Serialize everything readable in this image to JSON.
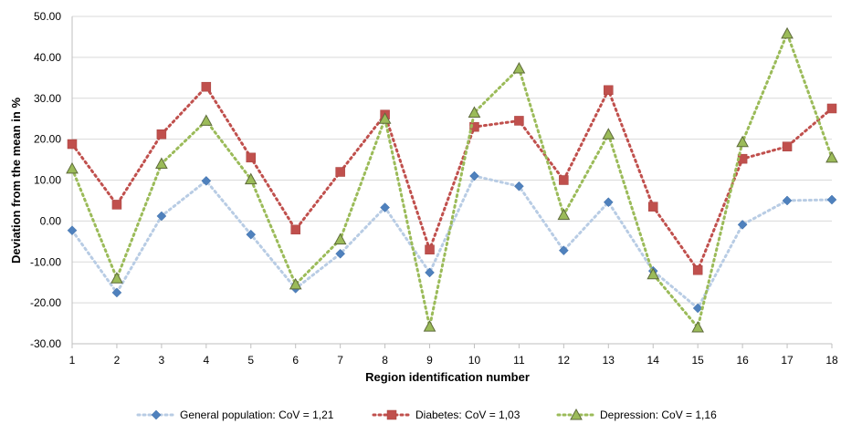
{
  "chart_data": {
    "type": "line",
    "xlabel": "Region identification number",
    "ylabel": "Deviation from the mean in %",
    "ylim": [
      -30,
      50
    ],
    "ytick_step": 10,
    "categories": [
      "1",
      "2",
      "3",
      "4",
      "5",
      "6",
      "7",
      "8",
      "9",
      "10",
      "11",
      "12",
      "13",
      "14",
      "15",
      "16",
      "17",
      "18"
    ],
    "grid": "horizontal",
    "legend_position": "bottom",
    "series": [
      {
        "name": "General population: CoV = 1,21",
        "color": "#4f81bd",
        "line_color": "#b8cce4",
        "marker": "diamond",
        "values": [
          -2.3,
          -17.5,
          1.2,
          9.8,
          -3.3,
          -16.5,
          -8.0,
          3.3,
          -12.6,
          11.0,
          8.5,
          -7.2,
          4.6,
          -12.2,
          -21.3,
          -0.9,
          5.0,
          5.2
        ]
      },
      {
        "name": "Diabetes: CoV = 1,03",
        "color": "#c0504d",
        "line_color": "#c0504d",
        "marker": "square",
        "values": [
          18.8,
          4.0,
          21.2,
          32.8,
          15.5,
          -2.1,
          12.0,
          26.0,
          -7.0,
          23.0,
          24.5,
          10.0,
          32.0,
          3.5,
          -12.0,
          15.2,
          18.2,
          27.5
        ]
      },
      {
        "name": "Depression: CoV = 1,16",
        "color": "#9bbb59",
        "line_color": "#9bbb59",
        "marker": "triangle",
        "values": [
          12.8,
          -14.0,
          14.0,
          24.5,
          10.2,
          -15.5,
          -4.5,
          25.0,
          -25.8,
          26.5,
          37.3,
          1.5,
          21.2,
          -13.0,
          -26.0,
          19.3,
          45.8,
          15.5
        ]
      }
    ]
  }
}
